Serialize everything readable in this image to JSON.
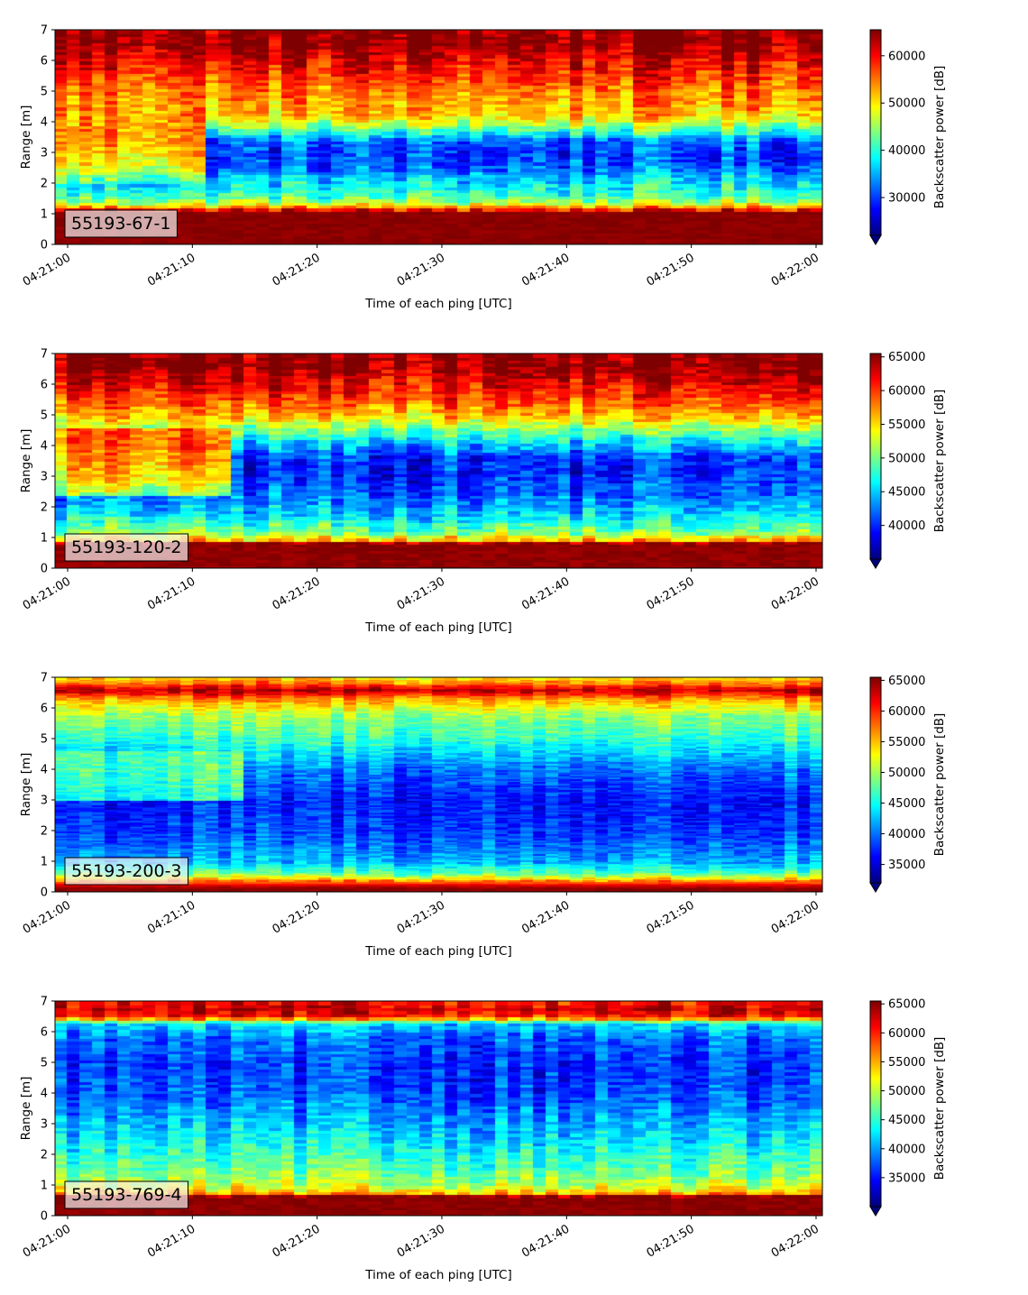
{
  "colors": {
    "colormap": [
      "#00007f",
      "#0000ff",
      "#007fff",
      "#00ffff",
      "#7fff7f",
      "#ffff00",
      "#ff7f00",
      "#ff0000",
      "#7f0000"
    ],
    "label_box_alpha": 0.7
  },
  "chart_data": [
    {
      "type": "heatmap",
      "label": "55193-67-1",
      "xlabel": "Time of each ping [UTC]",
      "ylabel": "Range [m]",
      "colorbar_label": "Backscatter power [dB]",
      "x_range": [
        "04:20:59",
        "04:22:00.5"
      ],
      "x_ticks": [
        "04:21:00",
        "04:21:10",
        "04:21:20",
        "04:21:30",
        "04:21:40",
        "04:21:50",
        "04:22:00"
      ],
      "ylim": [
        0,
        7
      ],
      "y_ticks": [
        0,
        1,
        2,
        3,
        4,
        5,
        6,
        7
      ],
      "clim": [
        22000,
        65500
      ],
      "colorbar_ticks": [
        30000,
        40000,
        50000,
        60000
      ],
      "colorbar_extend": "min",
      "grid": false,
      "pings": 61,
      "bins_per_meter": 10,
      "profile": [
        [
          0.0,
          65000
        ],
        [
          0.2,
          65000
        ],
        [
          1.1,
          65000
        ],
        [
          1.2,
          55000
        ],
        [
          1.4,
          46000
        ],
        [
          1.6,
          41000
        ],
        [
          2.2,
          36000
        ],
        [
          2.6,
          31000
        ],
        [
          3.0,
          30000
        ],
        [
          3.4,
          32000
        ],
        [
          3.8,
          43000
        ],
        [
          4.2,
          51000
        ],
        [
          5.0,
          55000
        ],
        [
          5.8,
          60000
        ],
        [
          6.3,
          63000
        ],
        [
          6.6,
          65000
        ],
        [
          7.0,
          65000
        ]
      ],
      "early": [
        [
          2.0,
          40000
        ],
        [
          2.6,
          49000
        ],
        [
          3.2,
          53000
        ],
        [
          4.2,
          54000
        ]
      ],
      "early_end": 0.2,
      "noise": 6500
    },
    {
      "type": "heatmap",
      "label": "55193-120-2",
      "xlabel": "Time of each ping [UTC]",
      "ylabel": "Range [m]",
      "colorbar_label": "Backscatter power [dB]",
      "x_range": [
        "04:20:59",
        "04:22:00.5"
      ],
      "x_ticks": [
        "04:21:00",
        "04:21:10",
        "04:21:20",
        "04:21:30",
        "04:21:40",
        "04:21:50",
        "04:22:00"
      ],
      "ylim": [
        0,
        7
      ],
      "y_ticks": [
        0,
        1,
        2,
        3,
        4,
        5,
        6,
        7
      ],
      "clim": [
        35000,
        65500
      ],
      "colorbar_ticks": [
        40000,
        45000,
        50000,
        55000,
        60000,
        65000
      ],
      "colorbar_extend": "min",
      "grid": false,
      "pings": 61,
      "bins_per_meter": 10,
      "profile": [
        [
          0.0,
          65000
        ],
        [
          0.2,
          65000
        ],
        [
          0.85,
          65000
        ],
        [
          0.95,
          56000
        ],
        [
          1.2,
          50000
        ],
        [
          1.8,
          45000
        ],
        [
          2.4,
          42000
        ],
        [
          3.0,
          40000
        ],
        [
          3.6,
          40000
        ],
        [
          4.2,
          46000
        ],
        [
          5.0,
          56000
        ],
        [
          5.6,
          60000
        ],
        [
          6.2,
          63000
        ],
        [
          6.6,
          65000
        ],
        [
          7.0,
          65000
        ]
      ],
      "early": [
        [
          2.4,
          50000
        ],
        [
          3.0,
          55000
        ],
        [
          4.0,
          58000
        ]
      ],
      "early_end": 0.22,
      "noise": 4500
    },
    {
      "type": "heatmap",
      "label": "55193-200-3",
      "xlabel": "Time of each ping [UTC]",
      "ylabel": "Range [m]",
      "colorbar_label": "Backscatter power [dB]",
      "x_range": [
        "04:20:59",
        "04:22:00.5"
      ],
      "x_ticks": [
        "04:21:00",
        "04:21:10",
        "04:21:20",
        "04:21:30",
        "04:21:40",
        "04:21:50",
        "04:22:00"
      ],
      "ylim": [
        0,
        7
      ],
      "y_ticks": [
        0,
        1,
        2,
        3,
        4,
        5,
        6,
        7
      ],
      "clim": [
        32000,
        65500
      ],
      "colorbar_ticks": [
        35000,
        40000,
        45000,
        50000,
        55000,
        60000,
        65000
      ],
      "colorbar_extend": "min",
      "grid": false,
      "pings": 61,
      "bins_per_meter": 20,
      "profile": [
        [
          0.0,
          65000
        ],
        [
          0.15,
          65000
        ],
        [
          0.35,
          58000
        ],
        [
          0.6,
          48000
        ],
        [
          1.0,
          42000
        ],
        [
          2.0,
          38000
        ],
        [
          3.0,
          37000
        ],
        [
          4.0,
          40000
        ],
        [
          5.0,
          46000
        ],
        [
          5.8,
          50000
        ],
        [
          6.3,
          56000
        ],
        [
          6.6,
          64000
        ],
        [
          6.8,
          58000
        ],
        [
          7.0,
          54000
        ]
      ],
      "early": [
        [
          3.0,
          45000
        ],
        [
          4.0,
          47000
        ]
      ],
      "early_end": 0.25,
      "noise": 4000
    },
    {
      "type": "heatmap",
      "label": "55193-769-4",
      "xlabel": "Time of each ping [UTC]",
      "ylabel": "Range [m]",
      "colorbar_label": "Backscatter power [dB]",
      "x_range": [
        "04:20:59",
        "04:22:00.5"
      ],
      "x_ticks": [
        "04:21:00",
        "04:21:10",
        "04:21:20",
        "04:21:30",
        "04:21:40",
        "04:21:50",
        "04:22:00"
      ],
      "ylim": [
        0,
        7
      ],
      "y_ticks": [
        0,
        1,
        2,
        3,
        4,
        5,
        6,
        7
      ],
      "clim": [
        30000,
        65500
      ],
      "colorbar_ticks": [
        35000,
        40000,
        45000,
        50000,
        55000,
        60000,
        65000
      ],
      "colorbar_extend": "min",
      "grid": false,
      "pings": 61,
      "bins_per_meter": 10,
      "profile": [
        [
          0.0,
          65000
        ],
        [
          0.25,
          65000
        ],
        [
          0.65,
          65000
        ],
        [
          0.75,
          55000
        ],
        [
          1.0,
          50000
        ],
        [
          1.6,
          46000
        ],
        [
          2.4,
          43000
        ],
        [
          3.2,
          40000
        ],
        [
          4.0,
          37000
        ],
        [
          5.0,
          36000
        ],
        [
          5.8,
          38000
        ],
        [
          6.3,
          42000
        ],
        [
          6.5,
          60000
        ],
        [
          6.8,
          63000
        ],
        [
          7.0,
          60000
        ]
      ],
      "early": [],
      "early_end": 0.0,
      "noise": 4500
    }
  ]
}
